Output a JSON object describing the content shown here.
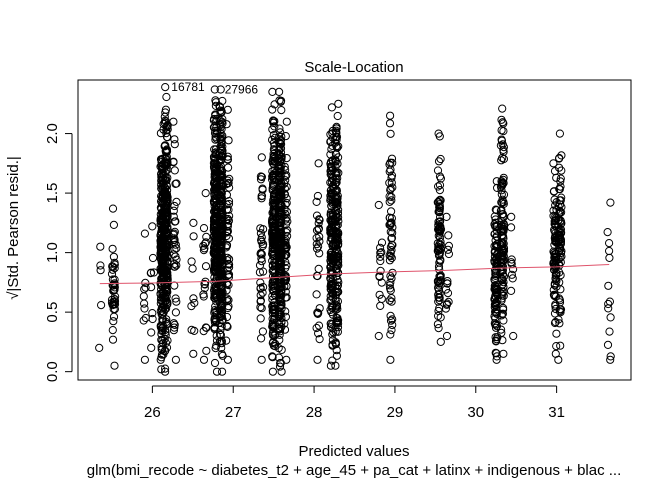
{
  "chart_data": {
    "type": "scatter",
    "title": "Scale-Location",
    "xlabel": "Predicted values",
    "ylabel": "√|Std. Pearson resid.|",
    "subtitle": "glm(bmi_recode ~ diabetes_t2 + age_45 + pa_cat + latinx + indigenous + blac ...",
    "xlim": [
      25.08,
      31.92
    ],
    "ylim": [
      -0.07,
      2.45
    ],
    "xticks": [
      26,
      27,
      28,
      29,
      30,
      31
    ],
    "yticks": [
      0.0,
      0.5,
      1.0,
      1.5,
      2.0
    ],
    "xtick_labels": [
      "26",
      "27",
      "28",
      "29",
      "30",
      "31"
    ],
    "ytick_labels": [
      "0.0",
      "0.5",
      "1.0",
      "1.5",
      "2.0"
    ],
    "grid": false,
    "point_color": "#000000",
    "smooth_color": "#df536b",
    "clusters": [
      {
        "x": 25.35,
        "ymin": 0.2,
        "ymax": 1.05,
        "n": 5
      },
      {
        "x": 25.52,
        "ymin": 0.05,
        "ymax": 1.37,
        "n": 40
      },
      {
        "x": 25.9,
        "ymin": 0.1,
        "ymax": 1.16,
        "n": 10
      },
      {
        "x": 26.0,
        "ymin": 0.2,
        "ymax": 1.22,
        "n": 10
      },
      {
        "x": 26.12,
        "ymin": 0.02,
        "ymax": 2.08,
        "n": 220
      },
      {
        "x": 26.17,
        "ymin": 0.0,
        "ymax": 2.39,
        "n": 220
      },
      {
        "x": 26.28,
        "ymin": 0.1,
        "ymax": 2.1,
        "n": 40
      },
      {
        "x": 26.5,
        "ymin": 0.15,
        "ymax": 1.25,
        "n": 10
      },
      {
        "x": 26.65,
        "ymin": 0.1,
        "ymax": 1.5,
        "n": 20
      },
      {
        "x": 26.78,
        "ymin": 0.0,
        "ymax": 2.37,
        "n": 260
      },
      {
        "x": 26.85,
        "ymin": 0.0,
        "ymax": 2.37,
        "n": 260
      },
      {
        "x": 26.93,
        "ymin": 0.1,
        "ymax": 2.2,
        "n": 60
      },
      {
        "x": 27.35,
        "ymin": 0.1,
        "ymax": 1.8,
        "n": 40
      },
      {
        "x": 27.5,
        "ymin": 0.0,
        "ymax": 2.35,
        "n": 200
      },
      {
        "x": 27.58,
        "ymin": 0.0,
        "ymax": 2.35,
        "n": 260
      },
      {
        "x": 27.65,
        "ymin": 0.1,
        "ymax": 2.1,
        "n": 60
      },
      {
        "x": 28.05,
        "ymin": 0.1,
        "ymax": 1.75,
        "n": 30
      },
      {
        "x": 28.22,
        "ymin": 0.05,
        "ymax": 2.22,
        "n": 160
      },
      {
        "x": 28.28,
        "ymin": 0.05,
        "ymax": 2.25,
        "n": 160
      },
      {
        "x": 28.95,
        "ymin": 0.1,
        "ymax": 2.15,
        "n": 60
      },
      {
        "x": 28.82,
        "ymin": 0.3,
        "ymax": 1.4,
        "n": 15
      },
      {
        "x": 29.55,
        "ymin": 0.25,
        "ymax": 2.0,
        "n": 90
      },
      {
        "x": 29.65,
        "ymin": 0.3,
        "ymax": 1.3,
        "n": 15
      },
      {
        "x": 30.25,
        "ymin": 0.1,
        "ymax": 1.6,
        "n": 100
      },
      {
        "x": 30.33,
        "ymin": 0.15,
        "ymax": 2.21,
        "n": 120
      },
      {
        "x": 30.45,
        "ymin": 0.3,
        "ymax": 1.3,
        "n": 10
      },
      {
        "x": 30.98,
        "ymin": 0.15,
        "ymax": 1.75,
        "n": 80
      },
      {
        "x": 31.04,
        "ymin": 0.1,
        "ymax": 2.0,
        "n": 80
      },
      {
        "x": 31.65,
        "ymin": 0.1,
        "ymax": 1.42,
        "n": 14
      }
    ],
    "smooth_x": [
      25.35,
      26.0,
      26.8,
      27.5,
      28.2,
      29.0,
      29.6,
      30.3,
      31.0,
      31.65
    ],
    "smooth_y": [
      0.74,
      0.745,
      0.76,
      0.79,
      0.82,
      0.84,
      0.85,
      0.87,
      0.88,
      0.9
    ],
    "outliers": [
      {
        "label": "16781",
        "x": 26.16,
        "y": 2.39
      },
      {
        "label": "27966",
        "x": 26.82,
        "y": 2.37
      }
    ]
  }
}
